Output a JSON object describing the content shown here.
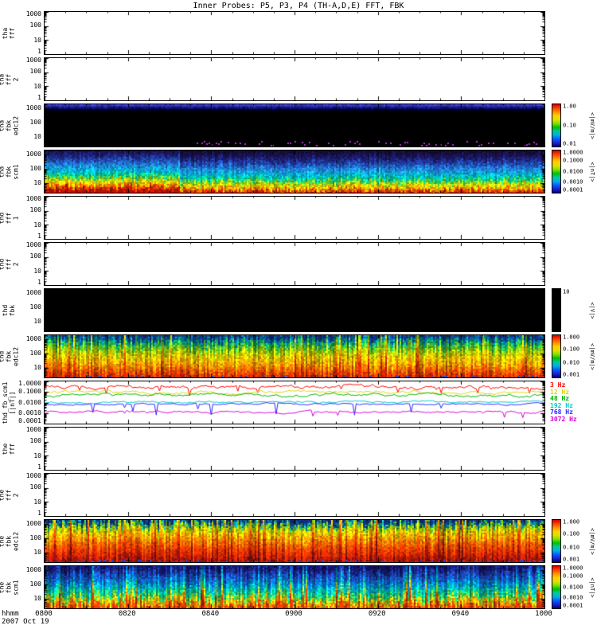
{
  "title": "Inner Probes: P5, P3, P4 (TH-A,D,E) FFT, FBK",
  "xaxis": {
    "label_line1": "hhmm",
    "label_line2": "2007 Oct 19",
    "ticks": [
      "0800",
      "0820",
      "0840",
      "0900",
      "0920",
      "0940",
      "1000"
    ]
  },
  "chart_data": {
    "type": "heatmap",
    "title": "Inner Probes: P5, P3, P4 (TH-A,D,E) FFT, FBK",
    "time_range": [
      "0800",
      "1000"
    ],
    "date": "2007 Oct 19",
    "rainbow": [
      "#d00000",
      "#ff4000",
      "#ff9000",
      "#ffd000",
      "#e0e000",
      "#80e000",
      "#00c000",
      "#00c8a0",
      "#00b0e0",
      "#0060ff",
      "#2020d0",
      "#000080"
    ],
    "panels": [
      {
        "id": "tha-fff",
        "ylabel_lines": [
          "tha",
          "fff"
        ],
        "ymin": 1,
        "ymax": 1000,
        "yticks": [
          {
            "v": 1000,
            "t": "1000"
          },
          {
            "v": 100,
            "t": "100"
          },
          {
            "v": 10,
            "t": "10"
          },
          {
            "v": 1,
            "t": "1"
          }
        ],
        "content": "empty",
        "colorbar": null
      },
      {
        "id": "tha-fff-2",
        "ylabel_lines": [
          "tha",
          "fff",
          "2"
        ],
        "ymin": 1,
        "ymax": 1000,
        "yticks": [
          {
            "v": 1000,
            "t": "1000"
          },
          {
            "v": 100,
            "t": "100"
          },
          {
            "v": 10,
            "t": "10"
          },
          {
            "v": 1,
            "t": "1"
          }
        ],
        "content": "empty",
        "colorbar": null
      },
      {
        "id": "tha-fbk-edc12",
        "ylabel_lines": [
          "tha",
          "fbk",
          "edc12"
        ],
        "ymin": 2,
        "ymax": 2048,
        "yticks": [
          {
            "v": 1000,
            "t": "1000"
          },
          {
            "v": 100,
            "t": "100"
          },
          {
            "v": 10,
            "t": "10"
          }
        ],
        "content": "spectrogram",
        "spec": {
          "profile": [
            [
              0,
              "#3840c8"
            ],
            [
              0.04,
              "#222290"
            ],
            [
              0.09,
              "#000050"
            ],
            [
              0.14,
              "#000000"
            ],
            [
              1,
              "#000000"
            ]
          ],
          "streak": 0.01,
          "grain": 0.02,
          "cellflick": 0.5,
          "speckles": [
            {
              "color": "#b030d0",
              "prob": 0.45,
              "y0": 0.86,
              "y1": 0.97,
              "x0": 0.28,
              "x1": 1.0
            },
            {
              "color": "#5050ff",
              "prob": 0.02,
              "y0": 0.2,
              "y1": 0.9,
              "x0": 0,
              "x1": 1
            }
          ]
        },
        "colorbar": {
          "type": "rainbow",
          "ticks": [
            "1.00",
            "0.10",
            "0.01"
          ],
          "unit": "<|mV/m|>"
        }
      },
      {
        "id": "tha-fbk-scm1",
        "ylabel_lines": [
          "tha",
          "fbk",
          "scm1"
        ],
        "ymin": 2,
        "ymax": 2048,
        "yticks": [
          {
            "v": 1000,
            "t": "1000"
          },
          {
            "v": 100,
            "t": "100"
          },
          {
            "v": 10,
            "t": "10"
          }
        ],
        "content": "spectrogram",
        "spec": {
          "profile": [
            [
              0,
              "#140a30"
            ],
            [
              0.18,
              "#1c1c70"
            ],
            [
              0.3,
              "#2048b0"
            ],
            [
              0.45,
              "#2090e0"
            ],
            [
              0.56,
              "#00b8d8"
            ],
            [
              0.66,
              "#00d090"
            ],
            [
              0.73,
              "#70d030"
            ],
            [
              0.8,
              "#d8e000"
            ],
            [
              0.86,
              "#ffc800"
            ],
            [
              0.92,
              "#ff6000"
            ],
            [
              1,
              "#b81000"
            ]
          ],
          "streak": 0.05,
          "grain": 0.12,
          "cellflick": 0.5,
          "flicker": 0.15,
          "lefthot": {
            "x": 0.27,
            "shift": 0.09
          }
        },
        "colorbar": {
          "type": "rainbow",
          "ticks": [
            "1.0000",
            "0.1000",
            "0.0100",
            "0.0010",
            "0.0001"
          ],
          "unit": "<|nT|>"
        }
      },
      {
        "id": "thd-fff-1",
        "ylabel_lines": [
          "thd",
          "fff",
          "1"
        ],
        "ymin": 1,
        "ymax": 1000,
        "yticks": [
          {
            "v": 1000,
            "t": "1000"
          },
          {
            "v": 100,
            "t": "100"
          },
          {
            "v": 10,
            "t": "10"
          },
          {
            "v": 1,
            "t": "1"
          }
        ],
        "content": "empty",
        "colorbar": null
      },
      {
        "id": "thd-fff-2",
        "ylabel_lines": [
          "thd",
          "fff",
          "2"
        ],
        "ymin": 1,
        "ymax": 1000,
        "yticks": [
          {
            "v": 1000,
            "t": "1000"
          },
          {
            "v": 100,
            "t": "100"
          },
          {
            "v": 10,
            "t": "10"
          },
          {
            "v": 1,
            "t": "1"
          }
        ],
        "content": "empty",
        "colorbar": null
      },
      {
        "id": "thd-fbk",
        "ylabel_lines": [
          "thd",
          "fbk"
        ],
        "ymin": 2,
        "ymax": 2048,
        "yticks": [
          {
            "v": 1000,
            "t": "1000"
          },
          {
            "v": 100,
            "t": "100"
          },
          {
            "v": 10,
            "t": "10"
          }
        ],
        "content": "black",
        "colorbar": {
          "type": "black",
          "ticks": [
            "10"
          ],
          "unit": "<|V|>"
        }
      },
      {
        "id": "thd-fbk-edc12",
        "ylabel_lines": [
          "thd",
          "fbk",
          "edc12"
        ],
        "ymin": 2,
        "ymax": 2048,
        "yticks": [
          {
            "v": 1000,
            "t": "1000"
          },
          {
            "v": 100,
            "t": "100"
          },
          {
            "v": 10,
            "t": "10"
          }
        ],
        "content": "spectrogram",
        "spec": {
          "profile": [
            [
              0,
              "#102a70"
            ],
            [
              0.09,
              "#0868a8"
            ],
            [
              0.16,
              "#00a070"
            ],
            [
              0.28,
              "#58c020"
            ],
            [
              0.42,
              "#c8d000"
            ],
            [
              0.58,
              "#ffc000"
            ],
            [
              0.72,
              "#ff9000"
            ],
            [
              0.85,
              "#ff5000"
            ],
            [
              1,
              "#c82000"
            ]
          ],
          "streak": 0.1,
          "hotcols": 0.1,
          "grain": 0.15,
          "flicker": 0.3,
          "cellflick": 0.5,
          "speckles": [
            {
              "color": "#2040c0",
              "prob": 0.5,
              "y0": 0.94,
              "y1": 1.0,
              "x0": 0,
              "x1": 1
            }
          ]
        },
        "colorbar": {
          "type": "rainbow",
          "ticks": [
            "1.000",
            "0.100",
            "0.010",
            "0.001"
          ],
          "unit": "<|mV/m|>"
        }
      },
      {
        "id": "thd-fb-scm1",
        "ylabel_lines": [
          "thd_fb_scm1",
          "[|nT|]"
        ],
        "ymin": 0.0001,
        "ymax": 1,
        "yticks": [
          {
            "v": 1,
            "t": "1.0000"
          },
          {
            "v": 0.1,
            "t": "0.1000"
          },
          {
            "v": 0.01,
            "t": "0.0100"
          },
          {
            "v": 0.001,
            "t": "0.0010"
          },
          {
            "v": 0.0001,
            "t": "0.0001"
          }
        ],
        "content": "lines",
        "series": [
          {
            "label": "3 Hz",
            "color": "#ff0000",
            "level": -0.55,
            "noise": 0.22,
            "spikes": 0.7
          },
          {
            "label": "12 Hz",
            "color": "#d8d800",
            "level": -1.0,
            "noise": 0.18
          },
          {
            "label": "48 Hz",
            "color": "#00b000",
            "level": -1.3,
            "noise": 0.18
          },
          {
            "label": "192 Hz",
            "color": "#00c8c8",
            "level": -1.95,
            "noise": 0.12
          },
          {
            "label": "768 Hz",
            "color": "#2828ff",
            "level": -2.15,
            "noise": 0.1,
            "spikes": 1.2
          },
          {
            "label": "3072 Hz",
            "color": "#d800d8",
            "level": -2.9,
            "noise": 0.14,
            "spikes": 0.6
          }
        ],
        "colorbar": null
      },
      {
        "id": "the-fff",
        "ylabel_lines": [
          "the",
          "fff"
        ],
        "ymin": 1,
        "ymax": 1000,
        "yticks": [
          {
            "v": 1000,
            "t": "1000"
          },
          {
            "v": 100,
            "t": "100"
          },
          {
            "v": 10,
            "t": "10"
          },
          {
            "v": 1,
            "t": "1"
          }
        ],
        "content": "empty",
        "colorbar": null
      },
      {
        "id": "the-fff-2",
        "ylabel_lines": [
          "the",
          "fff",
          "2"
        ],
        "ymin": 1,
        "ymax": 1000,
        "yticks": [
          {
            "v": 1000,
            "t": "1000"
          },
          {
            "v": 100,
            "t": "100"
          },
          {
            "v": 10,
            "t": "10"
          },
          {
            "v": 1,
            "t": "1"
          }
        ],
        "content": "empty",
        "colorbar": null
      },
      {
        "id": "the-fbk-edc12",
        "ylabel_lines": [
          "the",
          "fbk",
          "edc12"
        ],
        "ymin": 2,
        "ymax": 2048,
        "yticks": [
          {
            "v": 1000,
            "t": "1000"
          },
          {
            "v": 100,
            "t": "100"
          },
          {
            "v": 10,
            "t": "10"
          }
        ],
        "content": "spectrogram",
        "spec": {
          "profile": [
            [
              0,
              "#102a70"
            ],
            [
              0.08,
              "#0090a0"
            ],
            [
              0.16,
              "#80cc00"
            ],
            [
              0.28,
              "#ffd000"
            ],
            [
              0.42,
              "#ff9800"
            ],
            [
              0.6,
              "#ff5000"
            ],
            [
              0.8,
              "#e02800"
            ],
            [
              1,
              "#901010"
            ]
          ],
          "streak": 0.1,
          "hotcols": 0.12,
          "grain": 0.15,
          "flicker": 0.3,
          "cellflick": 0.5,
          "speckles": [
            {
              "color": "#3050e0",
              "prob": 0.5,
              "y0": 0.93,
              "y1": 1.0,
              "x0": 0,
              "x1": 1
            }
          ]
        },
        "colorbar": {
          "type": "rainbow",
          "ticks": [
            "1.000",
            "0.100",
            "0.010",
            "0.001"
          ],
          "unit": "<|mV/m|>"
        }
      },
      {
        "id": "the-fbk-scm1",
        "ylabel_lines": [
          "the",
          "fbk",
          "scm1"
        ],
        "ymin": 2,
        "ymax": 2048,
        "yticks": [
          {
            "v": 1000,
            "t": "1000"
          },
          {
            "v": 100,
            "t": "100"
          },
          {
            "v": 10,
            "t": "10"
          }
        ],
        "content": "spectrogram",
        "spec": {
          "profile": [
            [
              0,
              "#101060"
            ],
            [
              0.2,
              "#2040b0"
            ],
            [
              0.38,
              "#0078d8"
            ],
            [
              0.52,
              "#00b8c0"
            ],
            [
              0.64,
              "#00d080"
            ],
            [
              0.74,
              "#78d030"
            ],
            [
              0.82,
              "#ffd000"
            ],
            [
              0.9,
              "#ff8000"
            ],
            [
              1,
              "#e03000"
            ]
          ],
          "streak": 0.13,
          "hotcols": 0.1,
          "grain": 0.18,
          "flicker": 0.3,
          "cellflick": 0.5
        },
        "colorbar": {
          "type": "rainbow",
          "ticks": [
            "1.0000",
            "0.1000",
            "0.0100",
            "0.0010",
            "0.0001"
          ],
          "unit": "<|nT|>"
        }
      }
    ]
  }
}
